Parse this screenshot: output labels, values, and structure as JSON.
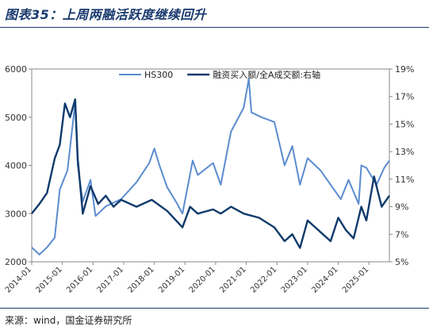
{
  "header": {
    "title": "图表35：上周两融活跃度继续回升"
  },
  "footer": {
    "source": "来源：wind，国金证券研究所"
  },
  "chart_data": {
    "type": "line",
    "title": "",
    "xlabel": "",
    "ylabel": "",
    "x_ticks": [
      "2014-01",
      "2015-01",
      "2016-01",
      "2017-01",
      "2018-01",
      "2019-01",
      "2020-01",
      "2021-01",
      "2022-01",
      "2023-01",
      "2024-01",
      "2025-01"
    ],
    "xlim": [
      "2014-01",
      "2025-09"
    ],
    "y_left": {
      "lim": [
        2000,
        6000
      ],
      "ticks": [
        "2000",
        "3000",
        "4000",
        "5000",
        "6000"
      ]
    },
    "y_right": {
      "lim": [
        5,
        19
      ],
      "ticks": [
        "5%",
        "7%",
        "9%",
        "11%",
        "13%",
        "15%",
        "17%",
        "19%"
      ]
    },
    "legend": {
      "placement": "top-center"
    },
    "grid": false,
    "series": [
      {
        "name": "HS300",
        "axis": "left",
        "color": "#5b8ccf",
        "x": [
          "2014-01",
          "2014-04",
          "2014-07",
          "2014-10",
          "2014-12",
          "2015-03",
          "2015-06",
          "2015-07",
          "2015-09",
          "2015-12",
          "2016-02",
          "2016-06",
          "2016-12",
          "2017-06",
          "2017-11",
          "2018-01",
          "2018-03",
          "2018-06",
          "2018-10",
          "2018-12",
          "2019-04",
          "2019-06",
          "2019-12",
          "2020-03",
          "2020-07",
          "2020-12",
          "2021-02",
          "2021-03",
          "2021-07",
          "2021-12",
          "2022-04",
          "2022-07",
          "2022-10",
          "2023-01",
          "2023-06",
          "2023-10",
          "2024-02",
          "2024-05",
          "2024-09",
          "2024-10",
          "2024-12",
          "2025-04",
          "2025-07",
          "2025-09"
        ],
        "values": [
          2300,
          2150,
          2300,
          2500,
          3500,
          3900,
          5300,
          4000,
          3250,
          3700,
          2950,
          3150,
          3300,
          3650,
          4050,
          4350,
          4000,
          3550,
          3200,
          3000,
          4100,
          3800,
          4050,
          3600,
          4700,
          5200,
          5800,
          5100,
          5000,
          4900,
          4000,
          4400,
          3600,
          4150,
          3900,
          3600,
          3300,
          3700,
          3200,
          4000,
          3950,
          3600,
          3950,
          4100
        ]
      },
      {
        "name": "融资买入额/全A成交额:右轴",
        "axis": "right",
        "color": "#0f3a6b",
        "x": [
          "2014-01",
          "2014-04",
          "2014-07",
          "2014-10",
          "2014-12",
          "2015-02",
          "2015-04",
          "2015-06",
          "2015-07",
          "2015-09",
          "2015-12",
          "2016-03",
          "2016-06",
          "2016-09",
          "2016-12",
          "2017-06",
          "2017-12",
          "2018-06",
          "2018-12",
          "2019-03",
          "2019-06",
          "2019-12",
          "2020-03",
          "2020-07",
          "2020-12",
          "2021-06",
          "2021-12",
          "2022-04",
          "2022-07",
          "2022-10",
          "2023-01",
          "2023-04",
          "2023-07",
          "2023-10",
          "2024-01",
          "2024-04",
          "2024-07",
          "2024-10",
          "2024-12",
          "2025-03",
          "2025-06",
          "2025-09"
        ],
        "values": [
          8.5,
          9.2,
          10.0,
          12.5,
          13.5,
          16.5,
          15.5,
          16.8,
          12.5,
          8.5,
          10.5,
          9.2,
          9.8,
          9.0,
          9.5,
          9.0,
          9.5,
          8.7,
          7.5,
          9.0,
          8.5,
          8.8,
          8.5,
          9.0,
          8.5,
          8.2,
          7.5,
          6.5,
          7.0,
          6.0,
          8.0,
          7.5,
          7.0,
          6.5,
          8.2,
          7.3,
          6.7,
          9.0,
          8.0,
          11.2,
          9.0,
          9.8
        ]
      }
    ]
  }
}
